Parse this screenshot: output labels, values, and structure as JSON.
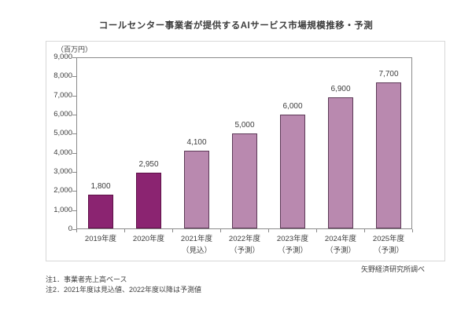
{
  "title": "コールセンター事業者が提供するAIサービス市場規模推移・予測",
  "source": "矢野経済研究所調べ",
  "notes": [
    "注1．事業者売上高ベース",
    "注2．2021年度は見込値、2022年度以降は予測値"
  ],
  "colors": {
    "actual": "#8b2471",
    "actual_border": "#5e1047",
    "forecast": "#b989af",
    "forecast_border": "#5d3a57",
    "axis": "#8a8a8a",
    "plot_border": "#8a8a8a",
    "frame_border": "#d7d7d7",
    "text": "#3d3d3d"
  },
  "chart_data": {
    "type": "bar",
    "title": "コールセンター事業者が提供するAIサービス市場規模推移・予測",
    "xlabel": "",
    "ylabel": "（百万円）",
    "ylim": [
      0,
      9000
    ],
    "ytick_step": 1000,
    "grid": false,
    "legend": "none",
    "categories": [
      {
        "label": "2019年度",
        "sublabel": "",
        "value": 1800,
        "value_label": "1,800",
        "series": "actual"
      },
      {
        "label": "2020年度",
        "sublabel": "",
        "value": 2950,
        "value_label": "2,950",
        "series": "actual"
      },
      {
        "label": "2021年度",
        "sublabel": "（見込）",
        "value": 4100,
        "value_label": "4,100",
        "series": "forecast"
      },
      {
        "label": "2022年度",
        "sublabel": "（予測）",
        "value": 5000,
        "value_label": "5,000",
        "series": "forecast"
      },
      {
        "label": "2023年度",
        "sublabel": "（予測）",
        "value": 6000,
        "value_label": "6,000",
        "series": "forecast"
      },
      {
        "label": "2024年度",
        "sublabel": "（予測）",
        "value": 6900,
        "value_label": "6,900",
        "series": "forecast"
      },
      {
        "label": "2025年度",
        "sublabel": "（予測）",
        "value": 7700,
        "value_label": "7,700",
        "series": "forecast"
      }
    ]
  }
}
